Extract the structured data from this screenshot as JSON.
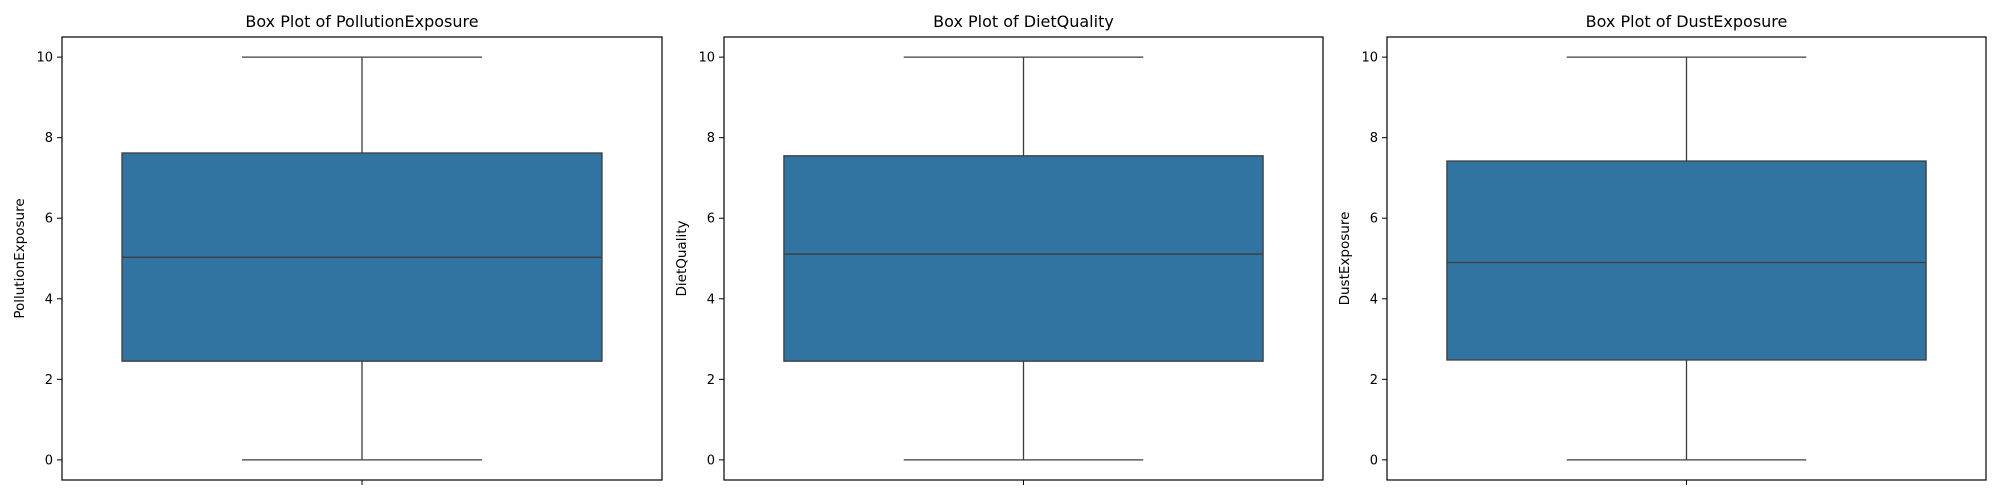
{
  "colors": {
    "box_fill": "#3274a1",
    "box_edge": "#3d3d3d",
    "axis": "#000000"
  },
  "chart_data": [
    {
      "type": "box",
      "title": "Box Plot of PollutionExposure",
      "ylabel": "PollutionExposure",
      "xlabel": "",
      "ylim": [
        -0.5,
        10.5
      ],
      "yticks": [
        0,
        2,
        4,
        6,
        8,
        10
      ],
      "grid": false,
      "box": {
        "whisker_low": 0.0,
        "q1": 2.45,
        "median": 5.03,
        "q3": 7.62,
        "whisker_high": 10.0
      }
    },
    {
      "type": "box",
      "title": "Box Plot of DietQuality",
      "ylabel": "DietQuality",
      "xlabel": "",
      "ylim": [
        -0.5,
        10.5
      ],
      "yticks": [
        0,
        2,
        4,
        6,
        8,
        10
      ],
      "grid": false,
      "box": {
        "whisker_low": 0.0,
        "q1": 2.45,
        "median": 5.11,
        "q3": 7.55,
        "whisker_high": 10.0
      }
    },
    {
      "type": "box",
      "title": "Box Plot of DustExposure",
      "ylabel": "DustExposure",
      "xlabel": "",
      "ylim": [
        -0.5,
        10.5
      ],
      "yticks": [
        0,
        2,
        4,
        6,
        8,
        10
      ],
      "grid": false,
      "box": {
        "whisker_low": 0.0,
        "q1": 2.48,
        "median": 4.9,
        "q3": 7.42,
        "whisker_high": 10.0
      }
    }
  ]
}
